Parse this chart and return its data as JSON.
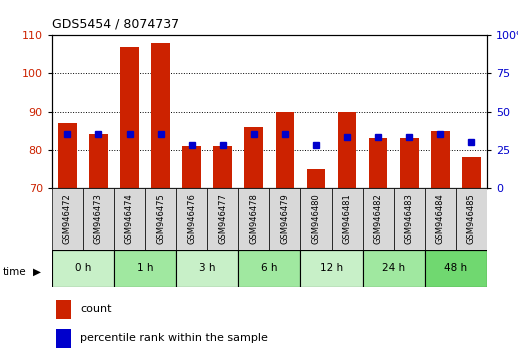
{
  "title": "GDS5454 / 8074737",
  "samples": [
    "GSM946472",
    "GSM946473",
    "GSM946474",
    "GSM946475",
    "GSM946476",
    "GSM946477",
    "GSM946478",
    "GSM946479",
    "GSM946480",
    "GSM946481",
    "GSM946482",
    "GSM946483",
    "GSM946484",
    "GSM946485"
  ],
  "counts": [
    87,
    84,
    107,
    108,
    81,
    81,
    86,
    90,
    75,
    90,
    83,
    83,
    85,
    78
  ],
  "percentiles": [
    35,
    35,
    35,
    35,
    28,
    28,
    35,
    35,
    28,
    33,
    33,
    33,
    35,
    30
  ],
  "time_groups": [
    {
      "label": "0 h",
      "start": 0,
      "end": 2,
      "color": "#c8f0c8"
    },
    {
      "label": "1 h",
      "start": 2,
      "end": 4,
      "color": "#a0e8a0"
    },
    {
      "label": "3 h",
      "start": 4,
      "end": 6,
      "color": "#c8f0c8"
    },
    {
      "label": "6 h",
      "start": 6,
      "end": 8,
      "color": "#a0e8a0"
    },
    {
      "label": "12 h",
      "start": 8,
      "end": 10,
      "color": "#c8f0c8"
    },
    {
      "label": "24 h",
      "start": 10,
      "end": 12,
      "color": "#a0e8a0"
    },
    {
      "label": "48 h",
      "start": 12,
      "end": 14,
      "color": "#70d870"
    }
  ],
  "ylim_left": [
    70,
    110
  ],
  "ylim_right": [
    0,
    100
  ],
  "yticks_left": [
    70,
    80,
    90,
    100,
    110
  ],
  "yticks_right": [
    0,
    25,
    50,
    75,
    100
  ],
  "bar_color": "#cc2200",
  "marker_color": "#0000cc",
  "bar_bottom": 70,
  "bar_width": 0.6,
  "bg_color": "#ffffff",
  "plot_bg": "#ffffff",
  "sample_bg": "#d8d8d8",
  "legend_count_label": "count",
  "legend_pct_label": "percentile rank within the sample"
}
